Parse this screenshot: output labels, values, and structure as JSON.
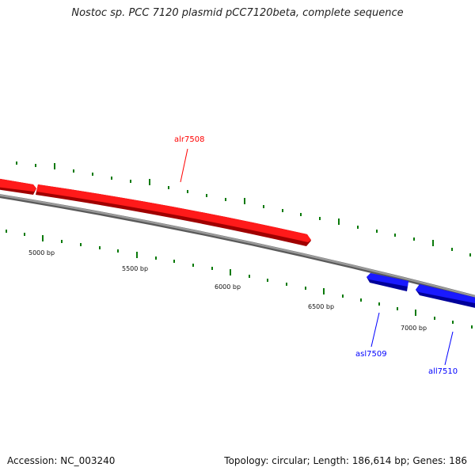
{
  "map": {
    "title": "Nostoc sp. PCC 7120 plasmid pCC7120beta, complete sequence",
    "accession": "Accession: NC_003240",
    "summary": "Topology: circular; Length: 186,614 bp; Genes: 186"
  },
  "colors": {
    "forward_gene": "#ff0000",
    "reverse_gene": "#0000ff",
    "backbone": "#808080",
    "tick": "#0a7a0a"
  },
  "scale_labels": [
    "5000 bp",
    "5500 bp",
    "6000 bp",
    "6500 bp",
    "7000 bp"
  ],
  "genes": [
    {
      "name": "alr7508",
      "strand": "forward"
    },
    {
      "name": "asl7509",
      "strand": "reverse"
    },
    {
      "name": "all7510",
      "strand": "reverse"
    }
  ]
}
